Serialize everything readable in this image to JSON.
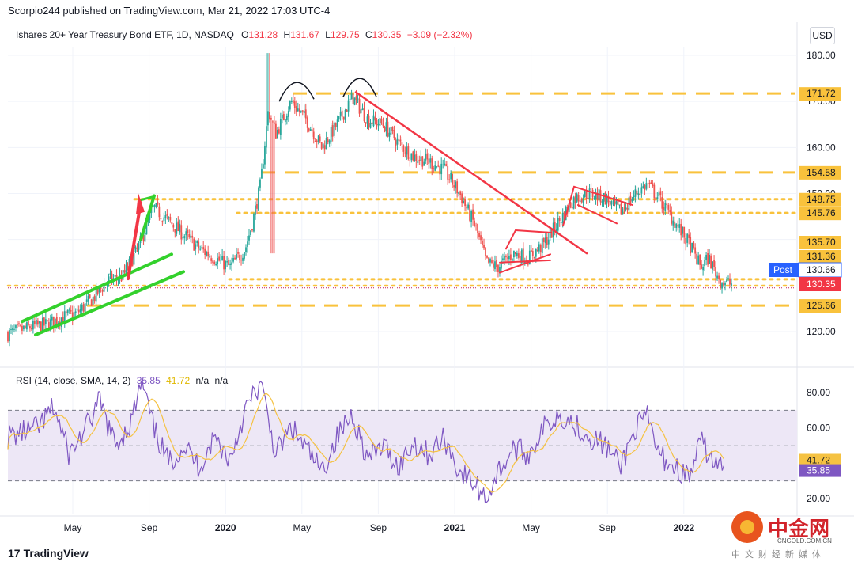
{
  "header": {
    "author_line": "Scorpio244 published on TradingView.com, Mar 21, 2022 17:03 UTC-4"
  },
  "legend": {
    "symbol": "Ishares 20+ Year Treasury Bond ETF, 1D, NASDAQ",
    "o_label": "O",
    "o": "131.28",
    "h_label": "H",
    "h": "131.67",
    "l_label": "L",
    "l": "129.75",
    "c_label": "C",
    "c": "130.35",
    "change": "−3.09 (−2.32%)"
  },
  "currency": "USD",
  "rsi_legend": {
    "label": "RSI (14, close, SMA, 14, 2)",
    "rsi": "35.85",
    "sma": "41.72",
    "na1": "n/a",
    "na2": "n/a"
  },
  "footer": {
    "logo": "TradingView",
    "mark": "17"
  },
  "watermark": {
    "big": "中金网",
    "domain": "CNGOLD.COM.CN",
    "small": "中文财经新媒体"
  },
  "colors": {
    "up": "#26a69a",
    "down": "#ef5350",
    "level": "#f9c23c",
    "trend_red": "#f23645",
    "channel_green": "#33d12c",
    "rsi_line": "#7e57c2",
    "rsi_sma": "#f5c242",
    "rsi_band": "#ede7f6",
    "post_badge": "#2962ff",
    "last_badge": "#f23645"
  },
  "chart_data": [
    {
      "type": "candlestick",
      "title": "Ishares 20+ Year Treasury Bond ETF, 1D, NASDAQ",
      "x_ticks": [
        "May",
        "Sep",
        "2020",
        "May",
        "Sep",
        "2021",
        "May",
        "Sep",
        "2022"
      ],
      "y_ticks": [
        "180.00",
        "170.00",
        "160.00",
        "150.00",
        "140.00",
        "120.00"
      ],
      "ylim": [
        116,
        183
      ],
      "approx_close_path": [
        {
          "t": 0.0,
          "v": 119.5
        },
        {
          "t": 0.03,
          "v": 121
        },
        {
          "t": 0.05,
          "v": 121.5
        },
        {
          "t": 0.07,
          "v": 123
        },
        {
          "t": 0.09,
          "v": 124
        },
        {
          "t": 0.11,
          "v": 127
        },
        {
          "t": 0.13,
          "v": 131
        },
        {
          "t": 0.15,
          "v": 132
        },
        {
          "t": 0.17,
          "v": 138
        },
        {
          "t": 0.19,
          "v": 147
        },
        {
          "t": 0.21,
          "v": 144
        },
        {
          "t": 0.23,
          "v": 141
        },
        {
          "t": 0.25,
          "v": 138
        },
        {
          "t": 0.27,
          "v": 136
        },
        {
          "t": 0.29,
          "v": 134
        },
        {
          "t": 0.31,
          "v": 138
        },
        {
          "t": 0.32,
          "v": 144
        },
        {
          "t": 0.33,
          "v": 152
        },
        {
          "t": 0.34,
          "v": 168
        },
        {
          "t": 0.35,
          "v": 163
        },
        {
          "t": 0.37,
          "v": 170
        },
        {
          "t": 0.39,
          "v": 166
        },
        {
          "t": 0.41,
          "v": 160
        },
        {
          "t": 0.43,
          "v": 165
        },
        {
          "t": 0.45,
          "v": 171
        },
        {
          "t": 0.47,
          "v": 166
        },
        {
          "t": 0.49,
          "v": 165
        },
        {
          "t": 0.51,
          "v": 161
        },
        {
          "t": 0.53,
          "v": 158
        },
        {
          "t": 0.55,
          "v": 157
        },
        {
          "t": 0.57,
          "v": 155
        },
        {
          "t": 0.59,
          "v": 150
        },
        {
          "t": 0.61,
          "v": 143
        },
        {
          "t": 0.625,
          "v": 135
        },
        {
          "t": 0.64,
          "v": 134
        },
        {
          "t": 0.66,
          "v": 137
        },
        {
          "t": 0.68,
          "v": 136
        },
        {
          "t": 0.7,
          "v": 139
        },
        {
          "t": 0.72,
          "v": 144
        },
        {
          "t": 0.74,
          "v": 149
        },
        {
          "t": 0.76,
          "v": 150
        },
        {
          "t": 0.78,
          "v": 149
        },
        {
          "t": 0.8,
          "v": 146
        },
        {
          "t": 0.82,
          "v": 150
        },
        {
          "t": 0.835,
          "v": 152
        },
        {
          "t": 0.85,
          "v": 149
        },
        {
          "t": 0.87,
          "v": 144
        },
        {
          "t": 0.89,
          "v": 139
        },
        {
          "t": 0.905,
          "v": 134
        },
        {
          "t": 0.915,
          "v": 136
        },
        {
          "t": 0.93,
          "v": 131
        },
        {
          "t": 0.945,
          "v": 130.35
        }
      ],
      "levels": [
        {
          "value": 171.72,
          "style": "dashed"
        },
        {
          "value": 154.58,
          "style": "dashed"
        },
        {
          "value": 148.75,
          "style": "dotted"
        },
        {
          "value": 145.76,
          "style": "dotted"
        },
        {
          "value": 131.36,
          "style": "dotted"
        },
        {
          "value": 125.66,
          "style": "dashed"
        },
        {
          "value": 130.66,
          "style": "none"
        }
      ],
      "price_labels": [
        "171.72",
        "154.58",
        "148.75",
        "145.76",
        "135.70",
        "131.36",
        "130.66",
        "130.35",
        "125.66"
      ],
      "post_label": "Post",
      "post_price": "130.66",
      "last_price": "130.35"
    },
    {
      "type": "line",
      "title": "RSI (14, close, SMA, 14, 2)",
      "y_ticks": [
        "80.00",
        "60.00",
        "20.00"
      ],
      "ylim": [
        15,
        90
      ],
      "bands": [
        70,
        50,
        30
      ],
      "series": [
        {
          "name": "RSI",
          "last": 35.85
        },
        {
          "name": "SMA",
          "last": 41.72
        }
      ],
      "approx_rsi_path": [
        {
          "t": 0.0,
          "v": 55
        },
        {
          "t": 0.04,
          "v": 60
        },
        {
          "t": 0.06,
          "v": 72
        },
        {
          "t": 0.08,
          "v": 45
        },
        {
          "t": 0.1,
          "v": 58
        },
        {
          "t": 0.12,
          "v": 75
        },
        {
          "t": 0.14,
          "v": 50
        },
        {
          "t": 0.16,
          "v": 62
        },
        {
          "t": 0.175,
          "v": 86
        },
        {
          "t": 0.19,
          "v": 60
        },
        {
          "t": 0.21,
          "v": 40
        },
        {
          "t": 0.23,
          "v": 50
        },
        {
          "t": 0.25,
          "v": 38
        },
        {
          "t": 0.27,
          "v": 55
        },
        {
          "t": 0.29,
          "v": 42
        },
        {
          "t": 0.31,
          "v": 70
        },
        {
          "t": 0.33,
          "v": 85
        },
        {
          "t": 0.35,
          "v": 45
        },
        {
          "t": 0.37,
          "v": 60
        },
        {
          "t": 0.39,
          "v": 48
        },
        {
          "t": 0.41,
          "v": 35
        },
        {
          "t": 0.43,
          "v": 55
        },
        {
          "t": 0.45,
          "v": 68
        },
        {
          "t": 0.47,
          "v": 42
        },
        {
          "t": 0.49,
          "v": 50
        },
        {
          "t": 0.51,
          "v": 38
        },
        {
          "t": 0.53,
          "v": 52
        },
        {
          "t": 0.55,
          "v": 45
        },
        {
          "t": 0.57,
          "v": 54
        },
        {
          "t": 0.59,
          "v": 35
        },
        {
          "t": 0.61,
          "v": 28
        },
        {
          "t": 0.625,
          "v": 20
        },
        {
          "t": 0.64,
          "v": 35
        },
        {
          "t": 0.66,
          "v": 48
        },
        {
          "t": 0.68,
          "v": 45
        },
        {
          "t": 0.7,
          "v": 60
        },
        {
          "t": 0.72,
          "v": 68
        },
        {
          "t": 0.74,
          "v": 62
        },
        {
          "t": 0.76,
          "v": 55
        },
        {
          "t": 0.78,
          "v": 50
        },
        {
          "t": 0.8,
          "v": 38
        },
        {
          "t": 0.82,
          "v": 60
        },
        {
          "t": 0.835,
          "v": 66
        },
        {
          "t": 0.85,
          "v": 45
        },
        {
          "t": 0.87,
          "v": 38
        },
        {
          "t": 0.89,
          "v": 32
        },
        {
          "t": 0.905,
          "v": 52
        },
        {
          "t": 0.92,
          "v": 42
        },
        {
          "t": 0.935,
          "v": 35.85
        }
      ],
      "y_labels": [
        "41.72",
        "35.85"
      ]
    }
  ]
}
